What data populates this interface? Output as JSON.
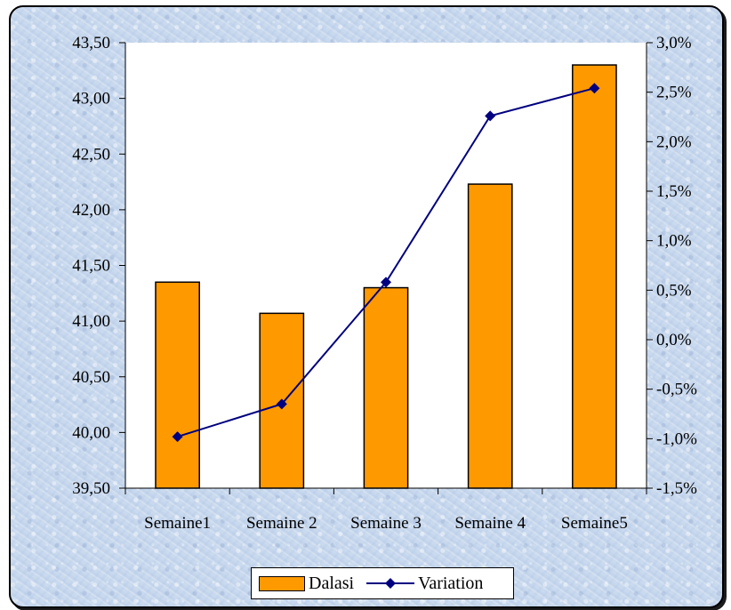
{
  "chart_data": {
    "type": "bar+line",
    "categories": [
      "Semaine1",
      "Semaine 2",
      "Semaine 3",
      "Semaine 4",
      "Semaine5"
    ],
    "series": [
      {
        "name": "Dalasi",
        "type": "bar",
        "axis": "left",
        "values": [
          41.35,
          41.07,
          41.3,
          42.23,
          43.3
        ],
        "color": "#ff9900"
      },
      {
        "name": "Variation",
        "type": "line",
        "axis": "right",
        "values": [
          -0.98,
          -0.65,
          0.58,
          2.26,
          2.54
        ],
        "color": "#000080"
      }
    ],
    "left_axis": {
      "min": 39.5,
      "max": 43.5,
      "step": 0.5,
      "ticks": [
        "39,50",
        "40,00",
        "40,50",
        "41,00",
        "41,50",
        "42,00",
        "42,50",
        "43,00",
        "43,50"
      ]
    },
    "right_axis": {
      "min": -1.5,
      "max": 3.0,
      "step": 0.5,
      "ticks": [
        "-1,5%",
        "-1,0%",
        "-0,5%",
        "0,0%",
        "0,5%",
        "1,0%",
        "1,5%",
        "2,0%",
        "2,5%",
        "3,0%"
      ]
    },
    "grid": false,
    "legend_position": "bottom",
    "plot_background": "#ffffff"
  },
  "legend": {
    "bar_label": "Dalasi",
    "line_label": "Variation"
  }
}
